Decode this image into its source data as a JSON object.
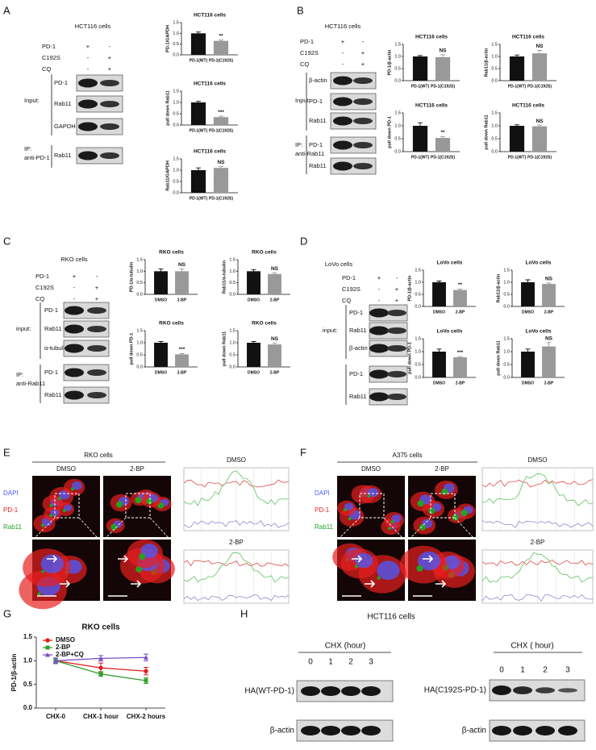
{
  "blots": [
    {
      "letter": "A",
      "cell_line": "HCT116 cells",
      "conditions": [
        {
          "label": "PD-1",
          "signs": [
            "+",
            "-"
          ]
        },
        {
          "label": "C192S",
          "signs": [
            "-",
            "+"
          ]
        },
        {
          "label": "CQ",
          "signs": [
            "-",
            "+"
          ]
        }
      ],
      "bands": [
        "PD-1",
        "Rab11",
        "GAPDH",
        "Rab11"
      ],
      "groups": [
        {
          "label": "Input:"
        },
        {
          "label": "IP:",
          "sublabel": "anti-PD-1"
        }
      ]
    },
    {
      "letter": "B",
      "cell_line": "HCT116 cells",
      "conditions": [
        {
          "label": "PD-1",
          "signs": [
            "+",
            "-"
          ]
        },
        {
          "label": "C192S",
          "signs": [
            "-",
            "+"
          ]
        },
        {
          "label": "CQ",
          "signs": [
            "-",
            "+"
          ]
        }
      ],
      "bands": [
        "β-actin",
        "PD-1",
        "Rab11",
        "PD-1",
        "Rab11"
      ],
      "groups": [
        {
          "label": "Input:"
        },
        {
          "label": "IP:",
          "sublabel": "anti-Rab11"
        }
      ]
    },
    {
      "letter": "C",
      "cell_line": "RKO cells",
      "conditions": [
        {
          "label": "PD-1",
          "signs": [
            "+",
            "-"
          ]
        },
        {
          "label": "C192S",
          "signs": [
            "-",
            "+"
          ]
        },
        {
          "label": "CQ",
          "signs": [
            "-",
            "+"
          ]
        }
      ],
      "bands": [
        "PD-1",
        "Rab11",
        "α-tubulin",
        "PD-1",
        "Rab11"
      ],
      "groups": [
        {
          "label": "input:"
        },
        {
          "label": "IP:",
          "sublabel": "anti-Rab11"
        }
      ]
    },
    {
      "letter": "D",
      "cell_line": "LoVo cells",
      "conditions": [
        {
          "label": "PD-1",
          "signs": [
            "+",
            "-"
          ]
        },
        {
          "label": "C192S",
          "signs": [
            "-",
            "+"
          ]
        },
        {
          "label": "CQ",
          "signs": [
            "-",
            "+"
          ]
        }
      ],
      "bands": [
        "PD-1",
        "Rab11",
        "β-actin",
        "PD-1",
        "Rab11"
      ],
      "groups": [
        {
          "label": "input:"
        }
      ]
    }
  ],
  "imaging": [
    {
      "letter": "E",
      "cell_line": "RKO cells",
      "conditions": [
        "DMSO",
        "2-BP"
      ],
      "channels": [
        {
          "label": "DAPI",
          "color": "#4a5cff"
        },
        {
          "label": "PD-1",
          "color": "#e82020"
        },
        {
          "label": "Rab11",
          "color": "#22a322"
        }
      ],
      "profile_titles": [
        "DMSO",
        "2-BP"
      ]
    },
    {
      "letter": "F",
      "cell_line": "A375 cells",
      "conditions": [
        "DMSO",
        "2-BP"
      ],
      "channels": [
        {
          "label": "DAPI",
          "color": "#4a5cff"
        },
        {
          "label": "PD-1",
          "color": "#e82020"
        },
        {
          "label": "Rab11",
          "color": "#22a322"
        }
      ],
      "profile_titles": [
        "DMSO",
        "2-BP"
      ]
    }
  ],
  "panel_h": {
    "letter": "H",
    "cell_line": "HCT116 cells",
    "blots": [
      {
        "axis_label": "CHX (hour)",
        "timepoints": [
          "0",
          "1",
          "2",
          "3"
        ],
        "bands": [
          "HA(WT-PD-1)",
          "β-actin"
        ]
      },
      {
        "axis_label": "CHX ( hour)",
        "timepoints": [
          "0",
          "1",
          "2",
          "3"
        ],
        "bands": [
          "HA(C192S-PD-1)",
          "β-actin"
        ]
      }
    ]
  },
  "chart_data": [
    {
      "type": "bar",
      "title": "HCT116 cells",
      "ylabel": "PD-1/GAPDH",
      "categories": [
        "PD-1(WT)",
        "PD-1(C192S)"
      ],
      "values": [
        1.0,
        0.65
      ],
      "errors": [
        0.06,
        0.04
      ],
      "colors": [
        "#111111",
        "#999999"
      ],
      "significance": "**",
      "ylim": [
        0,
        1.5
      ],
      "yticks": [
        {
          "value": 0,
          "label": "0.0"
        },
        0.5,
        {
          "value": 1,
          "label": "1.0"
        },
        {
          "value": 1.5,
          "label": "1.5"
        }
      ]
    },
    {
      "type": "bar",
      "title": "HCT116 cells",
      "ylabel": "pull down Rab11",
      "categories": [
        "PD-1(WT)",
        "PD-1(C192S)"
      ],
      "values": [
        1.0,
        0.35
      ],
      "errors": [
        0.05,
        0.04
      ],
      "colors": [
        "#111111",
        "#999999"
      ],
      "significance": "***",
      "ylim": [
        0,
        1.5
      ],
      "yticks": [
        {
          "value": 0,
          "label": "0.0"
        },
        0.5,
        {
          "value": 1,
          "label": "1.0"
        },
        {
          "value": 1.5,
          "label": "1.5"
        }
      ]
    },
    {
      "type": "bar",
      "title": "HCT116 cells",
      "ylabel": "Rab11/GAPDH",
      "categories": [
        "PD-1(WT)",
        "PD-1(C192S)"
      ],
      "values": [
        1.0,
        1.1
      ],
      "errors": [
        0.1,
        0.06
      ],
      "colors": [
        "#111111",
        "#999999"
      ],
      "significance": "NS",
      "ylim": [
        0,
        1.5
      ],
      "yticks": [
        {
          "value": 0,
          "label": "0.0"
        },
        0.5,
        {
          "value": 1,
          "label": "1.0"
        },
        {
          "value": 1.5,
          "label": "1.5"
        }
      ]
    },
    {
      "type": "bar",
      "title": "HCT116 cells",
      "ylabel": "PD-1/β-actin",
      "categories": [
        "PD-1(WT)",
        "PD-1(C192S)"
      ],
      "values": [
        1.0,
        0.97
      ],
      "errors": [
        0.04,
        0.1
      ],
      "colors": [
        "#111111",
        "#999999"
      ],
      "significance": "NS",
      "ylim": [
        0,
        1.5
      ],
      "yticks": [
        {
          "value": 0,
          "label": "0.0"
        },
        0.5,
        {
          "value": 1,
          "label": "1.0"
        },
        {
          "value": 1.5,
          "label": "1.5"
        }
      ]
    },
    {
      "type": "bar",
      "title": "HCT116 cells",
      "ylabel": "Rab11/β-actin",
      "categories": [
        "PD-1(WT)",
        "PD-1(C192S)"
      ],
      "values": [
        1.0,
        1.13
      ],
      "errors": [
        0.06,
        0.12
      ],
      "colors": [
        "#111111",
        "#999999"
      ],
      "significance": "NS",
      "ylim": [
        0,
        1.5
      ],
      "yticks": [
        {
          "value": 0,
          "label": "0.0"
        },
        0.5,
        {
          "value": 1,
          "label": "1.0"
        },
        {
          "value": 1.5,
          "label": "1.5"
        }
      ]
    },
    {
      "type": "bar",
      "title": "HCT116 cells",
      "ylabel": "pull down PD-1",
      "categories": [
        "PD-1(WT)",
        "PD-1(C192S)"
      ],
      "values": [
        1.0,
        0.53
      ],
      "errors": [
        0.12,
        0.05
      ],
      "colors": [
        "#111111",
        "#999999"
      ],
      "significance": "**",
      "ylim": [
        0,
        1.5
      ],
      "yticks": [
        {
          "value": 0,
          "label": "0.0"
        },
        0.5,
        {
          "value": 1,
          "label": "1.0"
        },
        {
          "value": 1.5,
          "label": "1.5"
        }
      ]
    },
    {
      "type": "bar",
      "title": "HCT116 cells",
      "ylabel": "pull down Rab11",
      "categories": [
        "PD-1(WT)",
        "PD-1(C192S)"
      ],
      "values": [
        1.0,
        0.98
      ],
      "errors": [
        0.04,
        0.05
      ],
      "colors": [
        "#111111",
        "#999999"
      ],
      "significance": "NS",
      "ylim": [
        0,
        1.5
      ],
      "yticks": [
        {
          "value": 0,
          "label": "0.0"
        },
        0.5,
        {
          "value": 1,
          "label": "1.0"
        },
        {
          "value": 1.5,
          "label": "1.5"
        }
      ]
    },
    {
      "type": "bar",
      "title": "RKO cells",
      "ylabel": "PD-1/α-tubulin",
      "categories": [
        "DMSO",
        "2-BP"
      ],
      "values": [
        1.0,
        1.0
      ],
      "errors": [
        0.1,
        0.1
      ],
      "colors": [
        "#111111",
        "#999999"
      ],
      "significance": "NS",
      "ylim": [
        0,
        1.5
      ],
      "yticks": [
        {
          "value": 0,
          "label": "0.0"
        },
        0.5,
        {
          "value": 1,
          "label": "1.0"
        },
        {
          "value": 1.5,
          "label": "1.5"
        }
      ]
    },
    {
      "type": "bar",
      "title": "RKO cells",
      "ylabel": "Rab11/α-tubulin",
      "categories": [
        "DMSO",
        "2-BP"
      ],
      "values": [
        1.0,
        0.88
      ],
      "errors": [
        0.07,
        0.05
      ],
      "colors": [
        "#111111",
        "#999999"
      ],
      "significance": "NS",
      "ylim": [
        0,
        1.5
      ],
      "yticks": [
        {
          "value": 0,
          "label": "0.0"
        },
        0.5,
        {
          "value": 1,
          "label": "1.0"
        },
        {
          "value": 1.5,
          "label": "1.5"
        }
      ]
    },
    {
      "type": "bar",
      "title": "RKO cells",
      "ylabel": "pull down PD-1",
      "categories": [
        "DMSO",
        "2-BP"
      ],
      "values": [
        1.0,
        0.52
      ],
      "errors": [
        0.05,
        0.03
      ],
      "colors": [
        "#111111",
        "#999999"
      ],
      "significance": "***",
      "ylim": [
        0,
        1.5
      ],
      "yticks": [
        {
          "value": 0,
          "label": "0.0"
        },
        0.5,
        {
          "value": 1,
          "label": "1.0"
        },
        {
          "value": 1.5,
          "label": "1.5"
        }
      ]
    },
    {
      "type": "bar",
      "title": "RKO cells",
      "ylabel": "pull down Rab11",
      "categories": [
        "DMSO",
        "2-BP"
      ],
      "values": [
        1.0,
        0.93
      ],
      "errors": [
        0.05,
        0.06
      ],
      "colors": [
        "#111111",
        "#999999"
      ],
      "significance": "NS",
      "ylim": [
        0,
        1.5
      ],
      "yticks": [
        {
          "value": 0,
          "label": "0.0"
        },
        0.5,
        {
          "value": 1,
          "label": "1.0"
        },
        {
          "value": 1.5,
          "label": "1.5"
        }
      ]
    },
    {
      "type": "bar",
      "title": "LoVo cells",
      "ylabel": "PD-1/β-actin",
      "categories": [
        "DMSO",
        "2-BP"
      ],
      "values": [
        1.0,
        0.68
      ],
      "errors": [
        0.05,
        0.04
      ],
      "colors": [
        "#111111",
        "#999999"
      ],
      "significance": "**",
      "ylim": [
        0,
        1.5
      ],
      "yticks": [
        {
          "value": 0,
          "label": "0.0"
        },
        0.5,
        {
          "value": 1,
          "label": "1.0"
        },
        {
          "value": 1.5,
          "label": "1.5"
        }
      ]
    },
    {
      "type": "bar",
      "title": "LoVo cells",
      "ylabel": "Rab11/β-actin",
      "categories": [
        "DMSO",
        "2-BP"
      ],
      "values": [
        1.0,
        0.93
      ],
      "errors": [
        0.1,
        0.04
      ],
      "colors": [
        "#111111",
        "#999999"
      ],
      "significance": "NS",
      "ylim": [
        0,
        1.5
      ],
      "yticks": [
        {
          "value": 0,
          "label": "0.0"
        },
        0.5,
        {
          "value": 1,
          "label": "1.0"
        },
        {
          "value": 1.5,
          "label": "1.5"
        }
      ]
    },
    {
      "type": "bar",
      "title": "LoVo cells",
      "ylabel": "pull down PD-1",
      "categories": [
        "DMSO",
        "2-BP"
      ],
      "values": [
        1.0,
        0.78
      ],
      "errors": [
        0.1,
        0.03
      ],
      "colors": [
        "#111111",
        "#999999"
      ],
      "significance": "***",
      "ylim": [
        0,
        1.5
      ],
      "yticks": [
        {
          "value": 0,
          "label": "0.0"
        },
        0.5,
        {
          "value": 1,
          "label": "1.0"
        },
        {
          "value": 1.5,
          "label": "1.5"
        }
      ]
    },
    {
      "type": "bar",
      "title": "LoVo cells",
      "ylabel": "pull down Rab11",
      "categories": [
        "DMSO",
        "2-BP"
      ],
      "values": [
        1.0,
        1.2
      ],
      "errors": [
        0.1,
        0.15
      ],
      "colors": [
        "#111111",
        "#999999"
      ],
      "significance": "NS",
      "ylim": [
        0,
        1.5
      ],
      "yticks": [
        {
          "value": 0,
          "label": "0.0"
        },
        0.5,
        {
          "value": 1,
          "label": "1.0"
        },
        {
          "value": 1.5,
          "label": "1.5"
        }
      ]
    },
    {
      "type": "line",
      "panel_label": "G",
      "title": "RKO cells",
      "ylabel": "PD-1/β-actin",
      "categories": [
        "CHX-0",
        "CHX-1 hour",
        "CHX-2 hours"
      ],
      "series": [
        {
          "name": "DMSO",
          "color": "#e31a1c",
          "marker": "circle",
          "values": [
            1.0,
            0.85,
            0.78
          ],
          "errors": [
            0.06,
            0.1,
            0.08
          ]
        },
        {
          "name": "2-BP",
          "color": "#33a02c",
          "marker": "square",
          "values": [
            1.0,
            0.72,
            0.58
          ],
          "errors": [
            0.05,
            0.05,
            0.06
          ]
        },
        {
          "name": "2-BP+CQ",
          "color": "#7b4fc9",
          "marker": "triangle",
          "values": [
            1.0,
            1.05,
            1.07
          ],
          "errors": [
            0.06,
            0.06,
            0.07
          ]
        }
      ],
      "ylim": [
        0,
        1.5
      ],
      "yticks": [
        {
          "value": 0,
          "label": "0.0"
        },
        0.5,
        {
          "value": 1,
          "label": "1.0"
        },
        {
          "value": 1.5,
          "label": "1.5"
        }
      ]
    }
  ]
}
